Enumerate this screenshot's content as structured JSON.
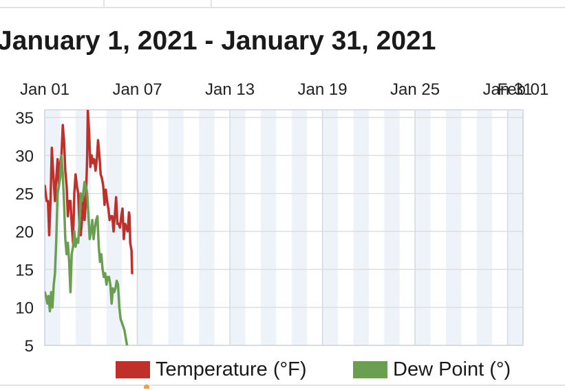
{
  "header": {
    "title": "January 1, 2021 - January 31, 2021"
  },
  "chart_data": {
    "type": "line",
    "title": "January 1, 2021 - January 31, 2021",
    "xlabel": "",
    "ylabel": "",
    "x_range": [
      "2021-01-01",
      "2021-02-01"
    ],
    "ylim": [
      5,
      36
    ],
    "x_ticks": [
      {
        "date": "2021-01-01",
        "label": "Jan 01"
      },
      {
        "date": "2021-01-07",
        "label": "Jan 07"
      },
      {
        "date": "2021-01-13",
        "label": "Jan 13"
      },
      {
        "date": "2021-01-19",
        "label": "Jan 19"
      },
      {
        "date": "2021-01-25",
        "label": "Jan 25"
      },
      {
        "date": "2021-01-31",
        "label": "Jan 31"
      },
      {
        "date": "2021-02-01",
        "label": "Feb 01"
      }
    ],
    "y_ticks": [
      5,
      10,
      15,
      20,
      25,
      30,
      35
    ],
    "grid": true,
    "alternating_day_shading": true,
    "legend_position": "bottom",
    "series": [
      {
        "name": "Temperature (°F)",
        "color": "#c0302b",
        "points": [
          [
            "2021-01-01T00:00",
            26
          ],
          [
            "2021-01-01T03:00",
            24
          ],
          [
            "2021-01-01T05:00",
            24
          ],
          [
            "2021-01-01T07:00",
            19.5
          ],
          [
            "2021-01-01T09:00",
            24
          ],
          [
            "2021-01-01T11:00",
            31
          ],
          [
            "2021-01-01T13:00",
            28
          ],
          [
            "2021-01-01T16:00",
            24
          ],
          [
            "2021-01-01T18:00",
            27
          ],
          [
            "2021-01-01T20:00",
            29.5
          ],
          [
            "2021-01-01T22:00",
            26
          ],
          [
            "2021-01-02T00:00",
            29
          ],
          [
            "2021-01-02T02:00",
            30
          ],
          [
            "2021-01-02T04:00",
            34
          ],
          [
            "2021-01-02T06:00",
            32
          ],
          [
            "2021-01-02T08:00",
            28
          ],
          [
            "2021-01-02T10:00",
            26
          ],
          [
            "2021-01-02T12:00",
            22
          ],
          [
            "2021-01-02T14:00",
            24
          ],
          [
            "2021-01-02T16:00",
            24
          ],
          [
            "2021-01-02T18:00",
            21
          ],
          [
            "2021-01-02T20:00",
            18.5
          ],
          [
            "2021-01-02T22:00",
            25
          ],
          [
            "2021-01-03T00:00",
            27.5
          ],
          [
            "2021-01-03T02:00",
            26
          ],
          [
            "2021-01-03T04:00",
            25
          ],
          [
            "2021-01-03T06:00",
            21
          ],
          [
            "2021-01-03T08:00",
            19.5
          ],
          [
            "2021-01-03T10:00",
            21.5
          ],
          [
            "2021-01-03T12:00",
            25
          ],
          [
            "2021-01-03T14:00",
            21.5
          ],
          [
            "2021-01-03T16:00",
            24
          ],
          [
            "2021-01-03T18:00",
            30
          ],
          [
            "2021-01-03T19:00",
            36
          ],
          [
            "2021-01-03T21:00",
            33
          ],
          [
            "2021-01-03T23:00",
            28.5
          ],
          [
            "2021-01-04T01:00",
            30
          ],
          [
            "2021-01-04T03:00",
            29
          ],
          [
            "2021-01-04T05:00",
            29.5
          ],
          [
            "2021-01-04T07:00",
            28
          ],
          [
            "2021-01-04T09:00",
            29.5
          ],
          [
            "2021-01-04T11:00",
            32
          ],
          [
            "2021-01-04T13:00",
            30
          ],
          [
            "2021-01-04T15:00",
            27.5
          ],
          [
            "2021-01-04T17:00",
            27
          ],
          [
            "2021-01-04T19:00",
            26
          ],
          [
            "2021-01-04T21:00",
            23.5
          ],
          [
            "2021-01-04T23:00",
            25.5
          ],
          [
            "2021-01-05T01:00",
            24
          ],
          [
            "2021-01-05T03:00",
            23
          ],
          [
            "2021-01-05T05:00",
            21.5
          ],
          [
            "2021-01-05T07:00",
            22
          ],
          [
            "2021-01-05T09:00",
            22
          ],
          [
            "2021-01-05T11:00",
            20
          ],
          [
            "2021-01-05T13:00",
            22
          ],
          [
            "2021-01-05T15:00",
            24.5
          ],
          [
            "2021-01-05T17:00",
            21
          ],
          [
            "2021-01-05T19:00",
            21
          ],
          [
            "2021-01-05T21:00",
            20.5
          ],
          [
            "2021-01-05T23:00",
            22
          ],
          [
            "2021-01-06T01:00",
            23
          ],
          [
            "2021-01-06T03:00",
            19
          ],
          [
            "2021-01-06T05:00",
            21
          ],
          [
            "2021-01-06T07:00",
            20.5
          ],
          [
            "2021-01-06T09:00",
            20
          ],
          [
            "2021-01-06T11:00",
            22.5
          ],
          [
            "2021-01-06T12:00",
            22
          ],
          [
            "2021-01-06T13:00",
            18.5
          ],
          [
            "2021-01-06T15:00",
            17.5
          ],
          [
            "2021-01-06T16:00",
            14.5
          ]
        ]
      },
      {
        "name": "Dew Point (°)",
        "color": "#6a9e50",
        "points": [
          [
            "2021-01-01T00:00",
            12
          ],
          [
            "2021-01-01T02:00",
            11.5
          ],
          [
            "2021-01-01T04:00",
            10.5
          ],
          [
            "2021-01-01T06:00",
            11.5
          ],
          [
            "2021-01-01T08:00",
            9.5
          ],
          [
            "2021-01-01T10:00",
            12
          ],
          [
            "2021-01-01T12:00",
            10
          ],
          [
            "2021-01-01T14:00",
            13
          ],
          [
            "2021-01-01T16:00",
            14.5
          ],
          [
            "2021-01-01T18:00",
            19
          ],
          [
            "2021-01-01T20:00",
            25
          ],
          [
            "2021-01-01T22:00",
            26
          ],
          [
            "2021-01-02T00:00",
            27
          ],
          [
            "2021-01-02T02:00",
            30
          ],
          [
            "2021-01-02T04:00",
            27.5
          ],
          [
            "2021-01-02T06:00",
            24
          ],
          [
            "2021-01-02T08:00",
            19
          ],
          [
            "2021-01-02T10:00",
            17
          ],
          [
            "2021-01-02T12:00",
            18.5
          ],
          [
            "2021-01-02T14:00",
            16
          ],
          [
            "2021-01-02T16:00",
            12
          ],
          [
            "2021-01-02T18:00",
            17
          ],
          [
            "2021-01-02T20:00",
            18
          ],
          [
            "2021-01-02T22:00",
            20
          ],
          [
            "2021-01-03T00:00",
            18
          ],
          [
            "2021-01-03T02:00",
            19
          ],
          [
            "2021-01-03T04:00",
            18.5
          ],
          [
            "2021-01-03T06:00",
            21
          ],
          [
            "2021-01-03T08:00",
            25
          ],
          [
            "2021-01-03T10:00",
            24
          ],
          [
            "2021-01-03T12:00",
            25
          ],
          [
            "2021-01-03T14:00",
            26.5
          ],
          [
            "2021-01-03T16:00",
            26
          ],
          [
            "2021-01-03T18:00",
            25
          ],
          [
            "2021-01-03T20:00",
            22
          ],
          [
            "2021-01-03T22:00",
            19
          ],
          [
            "2021-01-04T00:00",
            20
          ],
          [
            "2021-01-04T02:00",
            21.5
          ],
          [
            "2021-01-04T04:00",
            19
          ],
          [
            "2021-01-04T06:00",
            20.5
          ],
          [
            "2021-01-04T08:00",
            21.5
          ],
          [
            "2021-01-04T10:00",
            22
          ],
          [
            "2021-01-04T12:00",
            18
          ],
          [
            "2021-01-04T14:00",
            16
          ],
          [
            "2021-01-04T16:00",
            17
          ],
          [
            "2021-01-04T18:00",
            15
          ],
          [
            "2021-01-04T20:00",
            14
          ],
          [
            "2021-01-04T22:00",
            14.5
          ],
          [
            "2021-01-05T00:00",
            13
          ],
          [
            "2021-01-05T02:00",
            14
          ],
          [
            "2021-01-05T04:00",
            14
          ],
          [
            "2021-01-05T06:00",
            13
          ],
          [
            "2021-01-05T08:00",
            10.5
          ],
          [
            "2021-01-05T10:00",
            12.5
          ],
          [
            "2021-01-05T12:00",
            12
          ],
          [
            "2021-01-05T14:00",
            12.5
          ],
          [
            "2021-01-05T16:00",
            13.5
          ],
          [
            "2021-01-05T18:00",
            13
          ],
          [
            "2021-01-05T20:00",
            10
          ],
          [
            "2021-01-05T22:00",
            8.5
          ],
          [
            "2021-01-06T00:00",
            8
          ],
          [
            "2021-01-06T02:00",
            7.5
          ],
          [
            "2021-01-06T04:00",
            7
          ],
          [
            "2021-01-06T06:00",
            6
          ],
          [
            "2021-01-06T08:00",
            5
          ]
        ]
      }
    ]
  }
}
